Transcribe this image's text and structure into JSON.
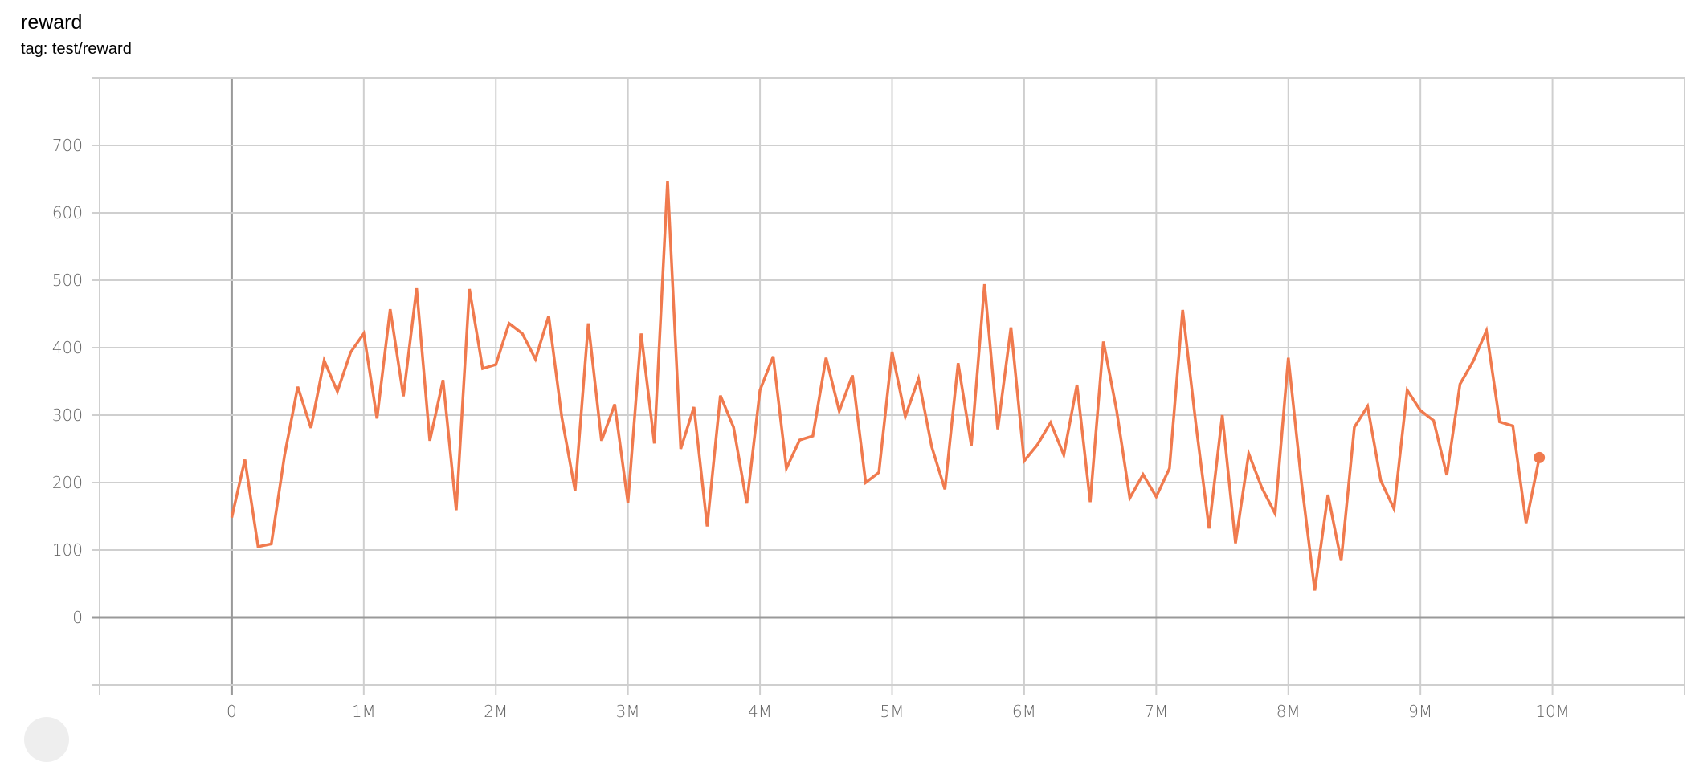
{
  "card": {
    "title": "reward",
    "subtitle": "tag: test/reward"
  },
  "colors": {
    "series": "#f07a4e",
    "grid": "#cfcfcf",
    "zero_axis": "#999999",
    "tick_text": "#666666"
  },
  "chart_data": {
    "type": "line",
    "title": "reward",
    "subtitle": "tag: test/reward",
    "xlabel": "",
    "ylabel": "",
    "xlim": [
      -1000000,
      11000000
    ],
    "ylim": [
      -100,
      800
    ],
    "grid": true,
    "x_ticks": [
      0,
      1000000,
      2000000,
      3000000,
      4000000,
      5000000,
      6000000,
      7000000,
      8000000,
      9000000,
      10000000
    ],
    "x_tick_labels": [
      "0",
      "1M",
      "2M",
      "3M",
      "4M",
      "5M",
      "6M",
      "7M",
      "8M",
      "9M",
      "10M"
    ],
    "y_ticks": [
      0,
      100,
      200,
      300,
      400,
      500,
      600,
      700
    ],
    "y_tick_labels": [
      "0",
      "100",
      "200",
      "300",
      "400",
      "500",
      "600",
      "700"
    ],
    "x_step": 100000,
    "x_start": 0,
    "series": [
      {
        "values": [
          148,
          234,
          105,
          109,
          240,
          342,
          281,
          381,
          335,
          393,
          421,
          295,
          457,
          328,
          488,
          262,
          352,
          159,
          487,
          369,
          375,
          436,
          421,
          383,
          447,
          296,
          188,
          436,
          262,
          316,
          170,
          421,
          258,
          647,
          250,
          312,
          135,
          329,
          282,
          169,
          337,
          387,
          221,
          263,
          269,
          385,
          306,
          359,
          200,
          215,
          394,
          298,
          354,
          253,
          190,
          377,
          255,
          494,
          279,
          430,
          232,
          256,
          289,
          241,
          345,
          171,
          409,
          307,
          177,
          212,
          179,
          221,
          456,
          287,
          132,
          300,
          110,
          243,
          192,
          154,
          385,
          200,
          40,
          182,
          84,
          282,
          313,
          203,
          161,
          337,
          307,
          292,
          211,
          346,
          380,
          425,
          290,
          284,
          140,
          237
        ],
        "last_point_marked": true
      }
    ]
  }
}
